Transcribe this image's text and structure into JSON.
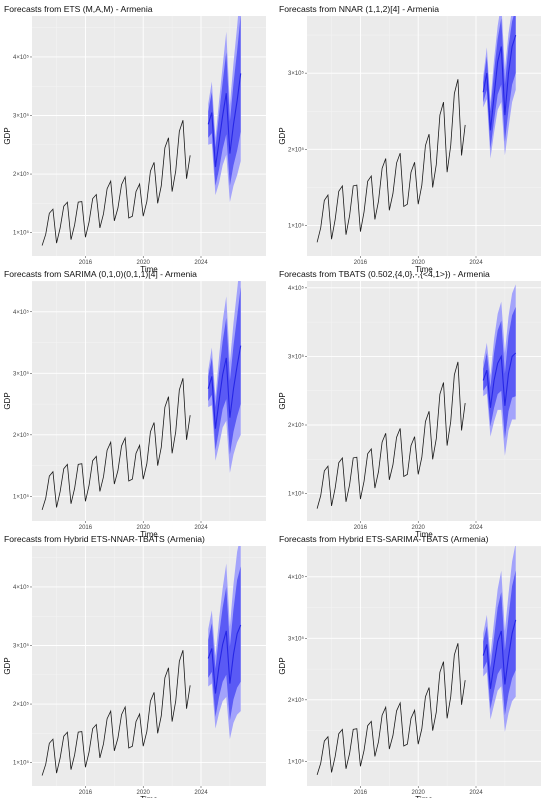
{
  "chart_data": [
    {
      "type": "line",
      "title": "Forecasts from ETS (M,A,M) - Armenia",
      "xlabel": "Time",
      "ylabel": "GDP",
      "xlim": [
        2012.3,
        2028.5
      ],
      "ylim": [
        60000,
        470000
      ],
      "x_ticks": [
        {
          "value": 2016,
          "label": "2016"
        },
        {
          "value": 2020,
          "label": "2020"
        },
        {
          "value": 2024,
          "label": "2024"
        }
      ],
      "y_ticks": [
        {
          "value": 100000,
          "label": "1×10⁵"
        },
        {
          "value": 200000,
          "label": "2×10⁵"
        },
        {
          "value": 300000,
          "label": "3×10⁵"
        },
        {
          "value": 400000,
          "label": "4×10⁵"
        }
      ],
      "history_start": 2013.0,
      "history": [
        78000,
        97000,
        133000,
        140000,
        82000,
        108000,
        145000,
        152000,
        88000,
        113000,
        152000,
        153000,
        92000,
        118000,
        158000,
        165000,
        108000,
        132000,
        175000,
        188000,
        120000,
        142000,
        182000,
        195000,
        125000,
        128000,
        170000,
        183000,
        128000,
        153000,
        205000,
        220000,
        150000,
        180000,
        245000,
        262000,
        170000,
        205000,
        273000,
        292000,
        192000,
        232000
      ],
      "forecast_start": 2024.5,
      "forecast": {
        "mean": [
          285000,
          305000,
          212000,
          255000,
          300000,
          338000,
          235000,
          285000,
          325000,
          372000
        ],
        "lo80": [
          262000,
          270000,
          180000,
          208000,
          243000,
          268000,
          180000,
          215000,
          240000,
          272000
        ],
        "hi80": [
          307000,
          340000,
          245000,
          302000,
          357000,
          408000,
          290000,
          355000,
          410000,
          472000
        ],
        "lo95": [
          250000,
          252000,
          164000,
          185000,
          215000,
          233000,
          152000,
          180000,
          198000,
          222000
        ],
        "hi95": [
          320000,
          358000,
          262000,
          325000,
          385000,
          443000,
          318000,
          390000,
          452000,
          522000
        ]
      }
    },
    {
      "type": "line",
      "title": "Forecasts from NNAR (1,1,2)[4] - Armenia",
      "xlabel": "Time",
      "ylabel": "GDP",
      "xlim": [
        2012.3,
        2028.5
      ],
      "ylim": [
        60000,
        375000
      ],
      "x_ticks": [
        {
          "value": 2016,
          "label": "2016"
        },
        {
          "value": 2020,
          "label": "2020"
        },
        {
          "value": 2024,
          "label": "2024"
        }
      ],
      "y_ticks": [
        {
          "value": 100000,
          "label": "1×10⁵"
        },
        {
          "value": 200000,
          "label": "2×10⁵"
        },
        {
          "value": 300000,
          "label": "3×10⁵"
        }
      ],
      "history_start": 2013.0,
      "history": [
        78000,
        97000,
        133000,
        140000,
        82000,
        108000,
        145000,
        152000,
        88000,
        113000,
        152000,
        153000,
        92000,
        118000,
        158000,
        165000,
        108000,
        132000,
        175000,
        188000,
        120000,
        142000,
        182000,
        195000,
        125000,
        128000,
        170000,
        183000,
        128000,
        153000,
        205000,
        220000,
        150000,
        180000,
        245000,
        262000,
        170000,
        205000,
        273000,
        292000,
        192000,
        232000
      ],
      "forecast_start": 2024.5,
      "forecast": {
        "mean": [
          275000,
          300000,
          225000,
          270000,
          315000,
          335000,
          245000,
          300000,
          335000,
          350000
        ],
        "lo80": [
          262000,
          278000,
          200000,
          238000,
          272000,
          285000,
          210000,
          252000,
          285000,
          300000
        ],
        "hi80": [
          288000,
          322000,
          250000,
          302000,
          345000,
          372000,
          285000,
          335000,
          368000,
          385000
        ],
        "lo95": [
          255000,
          266000,
          188000,
          222000,
          252000,
          262000,
          192000,
          228000,
          262000,
          278000
        ],
        "hi95": [
          296000,
          334000,
          262000,
          318000,
          362000,
          392000,
          305000,
          352000,
          385000,
          400000
        ]
      }
    },
    {
      "type": "line",
      "title": "Forecasts from SARIMA (0,1,0)(0,1,1)[4] - Armenia",
      "xlabel": "Time",
      "ylabel": "GDP",
      "xlim": [
        2012.3,
        2028.5
      ],
      "ylim": [
        60000,
        450000
      ],
      "x_ticks": [
        {
          "value": 2016,
          "label": "2016"
        },
        {
          "value": 2020,
          "label": "2020"
        },
        {
          "value": 2024,
          "label": "2024"
        }
      ],
      "y_ticks": [
        {
          "value": 100000,
          "label": "1×10⁵"
        },
        {
          "value": 200000,
          "label": "2×10⁵"
        },
        {
          "value": 300000,
          "label": "3×10⁵"
        },
        {
          "value": 400000,
          "label": "4×10⁵"
        }
      ],
      "history_start": 2013.0,
      "history": [
        78000,
        97000,
        133000,
        140000,
        82000,
        108000,
        145000,
        152000,
        88000,
        113000,
        152000,
        153000,
        92000,
        118000,
        158000,
        165000,
        108000,
        132000,
        175000,
        188000,
        120000,
        142000,
        182000,
        195000,
        125000,
        128000,
        170000,
        183000,
        128000,
        153000,
        205000,
        220000,
        150000,
        180000,
        245000,
        262000,
        170000,
        205000,
        273000,
        292000,
        192000,
        232000
      ],
      "forecast_start": 2024.5,
      "forecast": {
        "mean": [
          275000,
          295000,
          210000,
          255000,
          298000,
          325000,
          228000,
          275000,
          312000,
          345000
        ],
        "lo80": [
          255000,
          265000,
          175000,
          208000,
          242000,
          258000,
          168000,
          205000,
          230000,
          250000
        ],
        "hi80": [
          295000,
          325000,
          245000,
          302000,
          352000,
          390000,
          288000,
          345000,
          392000,
          440000
        ],
        "lo95": [
          245000,
          248000,
          158000,
          183000,
          212000,
          223000,
          138000,
          168000,
          188000,
          200000
        ],
        "hi95": [
          305000,
          342000,
          262000,
          327000,
          385000,
          425000,
          318000,
          382000,
          435000,
          490000
        ]
      }
    },
    {
      "type": "line",
      "title": "Forecasts from TBATS (0.502,{4,0},-,{<4,1>}) - Armenia",
      "xlabel": "Time",
      "ylabel": "GDP",
      "xlim": [
        2012.3,
        2028.5
      ],
      "ylim": [
        60000,
        410000
      ],
      "x_ticks": [
        {
          "value": 2016,
          "label": "2016"
        },
        {
          "value": 2020,
          "label": "2020"
        },
        {
          "value": 2024,
          "label": "2024"
        }
      ],
      "y_ticks": [
        {
          "value": 100000,
          "label": "1×10⁵"
        },
        {
          "value": 200000,
          "label": "2×10⁵"
        },
        {
          "value": 300000,
          "label": "3×10⁵"
        },
        {
          "value": 400000,
          "label": "4×10⁵"
        }
      ],
      "history_start": 2013.0,
      "history": [
        78000,
        97000,
        133000,
        140000,
        82000,
        108000,
        145000,
        152000,
        88000,
        113000,
        152000,
        153000,
        92000,
        118000,
        158000,
        165000,
        108000,
        132000,
        175000,
        188000,
        120000,
        142000,
        182000,
        195000,
        125000,
        128000,
        170000,
        183000,
        128000,
        153000,
        205000,
        220000,
        150000,
        180000,
        245000,
        262000,
        170000,
        205000,
        273000,
        292000,
        192000,
        232000
      ],
      "forecast_start": 2024.5,
      "forecast": {
        "mean": [
          265000,
          280000,
          225000,
          265000,
          290000,
          300000,
          228000,
          275000,
          300000,
          305000
        ],
        "lo80": [
          250000,
          258000,
          198000,
          225000,
          245000,
          250000,
          180000,
          220000,
          240000,
          242000
        ],
        "hi80": [
          282000,
          305000,
          255000,
          305000,
          338000,
          352000,
          275000,
          330000,
          360000,
          372000
        ],
        "lo95": [
          242000,
          246000,
          183000,
          205000,
          222000,
          222000,
          155000,
          192000,
          208000,
          208000
        ],
        "hi95": [
          292000,
          320000,
          272000,
          325000,
          362000,
          380000,
          305000,
          358000,
          392000,
          405000
        ]
      }
    },
    {
      "type": "line",
      "title": "Forecasts from Hybrid ETS-NNAR-TBATS (Armenia)",
      "xlabel": "Time",
      "ylabel": "GDP",
      "xlim": [
        2012.3,
        2028.5
      ],
      "ylim": [
        60000,
        470000
      ],
      "x_ticks": [
        {
          "value": 2016,
          "label": "2016"
        },
        {
          "value": 2020,
          "label": "2020"
        },
        {
          "value": 2024,
          "label": "2024"
        }
      ],
      "y_ticks": [
        {
          "value": 100000,
          "label": "1×10⁵"
        },
        {
          "value": 200000,
          "label": "2×10⁵"
        },
        {
          "value": 300000,
          "label": "3×10⁵"
        },
        {
          "value": 400000,
          "label": "4×10⁵"
        }
      ],
      "history_start": 2013.0,
      "history": [
        78000,
        97000,
        133000,
        140000,
        82000,
        108000,
        145000,
        152000,
        88000,
        113000,
        152000,
        153000,
        92000,
        118000,
        158000,
        165000,
        108000,
        132000,
        175000,
        188000,
        120000,
        142000,
        182000,
        195000,
        125000,
        128000,
        170000,
        183000,
        128000,
        153000,
        205000,
        220000,
        150000,
        180000,
        245000,
        262000,
        170000,
        205000,
        273000,
        292000,
        192000,
        232000
      ],
      "forecast_start": 2024.5,
      "forecast": {
        "mean": [
          278000,
          295000,
          218000,
          265000,
          302000,
          325000,
          235000,
          285000,
          320000,
          335000
        ],
        "lo80": [
          245000,
          255000,
          178000,
          212000,
          238000,
          250000,
          172000,
          208000,
          228000,
          238000
        ],
        "hi80": [
          310000,
          338000,
          260000,
          318000,
          365000,
          400000,
          298000,
          362000,
          412000,
          435000
        ],
        "lo95": [
          230000,
          235000,
          158000,
          185000,
          205000,
          212000,
          140000,
          168000,
          182000,
          188000
        ],
        "hi95": [
          328000,
          360000,
          282000,
          345000,
          398000,
          440000,
          332000,
          405000,
          460000,
          490000
        ]
      }
    },
    {
      "type": "line",
      "title": "Forecasts from Hybrid ETS-SARIMA-TBATS (Armenia)",
      "xlabel": "Time",
      "ylabel": "GDP",
      "xlim": [
        2012.3,
        2028.5
      ],
      "ylim": [
        60000,
        450000
      ],
      "x_ticks": [
        {
          "value": 2016,
          "label": "2016"
        },
        {
          "value": 2020,
          "label": "2020"
        },
        {
          "value": 2024,
          "label": "2024"
        }
      ],
      "y_ticks": [
        {
          "value": 100000,
          "label": "1×10⁵"
        },
        {
          "value": 200000,
          "label": "2×10⁵"
        },
        {
          "value": 300000,
          "label": "3×10⁵"
        },
        {
          "value": 400000,
          "label": "4×10⁵"
        }
      ],
      "history_start": 2013.0,
      "history": [
        78000,
        97000,
        133000,
        140000,
        82000,
        108000,
        145000,
        152000,
        88000,
        113000,
        152000,
        153000,
        92000,
        118000,
        158000,
        165000,
        108000,
        132000,
        175000,
        188000,
        120000,
        142000,
        182000,
        195000,
        125000,
        128000,
        170000,
        183000,
        128000,
        153000,
        205000,
        220000,
        150000,
        180000,
        245000,
        262000,
        170000,
        205000,
        273000,
        292000,
        192000,
        232000
      ],
      "forecast_start": 2024.5,
      "forecast": {
        "mean": [
          272000,
          290000,
          218000,
          258000,
          295000,
          312000,
          225000,
          270000,
          308000,
          330000
        ],
        "lo80": [
          250000,
          262000,
          185000,
          215000,
          242000,
          252000,
          175000,
          210000,
          235000,
          248000
        ],
        "hi80": [
          295000,
          320000,
          252000,
          302000,
          350000,
          375000,
          280000,
          335000,
          385000,
          410000
        ],
        "lo95": [
          238000,
          245000,
          168000,
          192000,
          215000,
          222000,
          148000,
          178000,
          198000,
          205000
        ],
        "hi95": [
          308000,
          338000,
          272000,
          328000,
          380000,
          410000,
          312000,
          372000,
          425000,
          455000
        ]
      }
    }
  ],
  "colors": {
    "panel_bg": "#ebebeb",
    "history_line": "#1a1a1a",
    "forecast_mean": "#2626e6",
    "band80": "#5a5af5",
    "band95": "#a3a3fb"
  }
}
